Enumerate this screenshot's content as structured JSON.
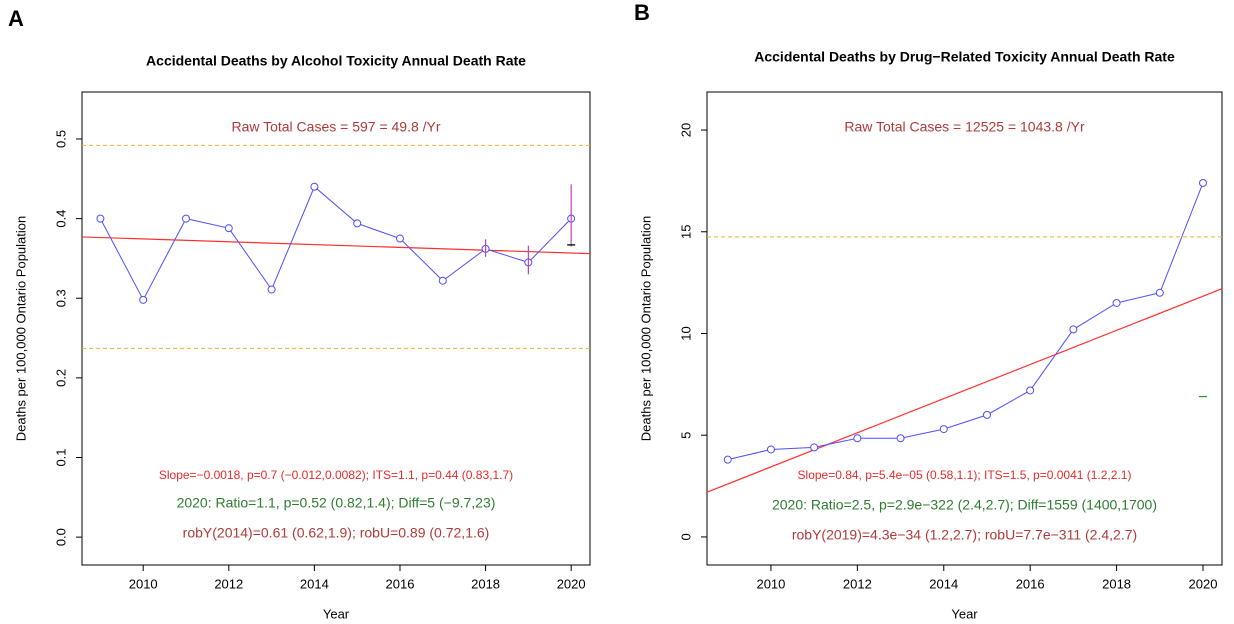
{
  "chart_data": [
    {
      "type": "line",
      "panel_label": "A",
      "title": "Accidental Deaths by Alcohol Toxicity Annual Death Rate",
      "x_label": "Year",
      "y_label": "Deaths per 100,000 Ontario Population",
      "x": [
        2009,
        2010,
        2011,
        2012,
        2013,
        2014,
        2015,
        2016,
        2017,
        2018,
        2019,
        2020
      ],
      "series": [
        {
          "color": "#4f4fff",
          "values": [
            0.4,
            0.298,
            0.4,
            0.388,
            0.311,
            0.44,
            0.394,
            0.375,
            0.322,
            0.362,
            0.345,
            0.4
          ]
        }
      ],
      "xlim": [
        2008.57,
        2020.44
      ],
      "ylim": [
        -0.035,
        0.559
      ],
      "xticks": [
        2010,
        2012,
        2014,
        2016,
        2018,
        2020
      ],
      "yticks": [
        {
          "value": 0,
          "label": "0.0"
        },
        0.1,
        0.2,
        0.3,
        0.4,
        0.5
      ],
      "hlines": [
        {
          "value": 0.492,
          "color": "#f0b030"
        },
        {
          "value": 0.237,
          "color": "#f0b030"
        }
      ],
      "trend": {
        "x": [
          2008.57,
          2020.44
        ],
        "y": [
          0.377,
          0.356
        ],
        "color": "#ff3030"
      },
      "ci_bars": [
        {
          "x": 2018,
          "low": 0.352,
          "high": 0.374,
          "color": "#c040c0"
        },
        {
          "x": 2019,
          "low": 0.33,
          "high": 0.366,
          "color": "#c040c0"
        },
        {
          "x": 2020,
          "low": 0.365,
          "high": 0.443,
          "color": "#c040c0"
        }
      ],
      "markers": [
        {
          "x": 2020,
          "y": 0.367,
          "color": "#000000"
        }
      ],
      "annotations": [
        {
          "text": "Raw Total Cases = 597 = 49.8 /Yr",
          "color": "#b03a3a"
        },
        {
          "text": "Slope=−0.0018, p=0.7 (−0.012,0.0082);  ITS=1.1, p=0.44 (0.83,1.7)",
          "color": "#e82a2a"
        },
        {
          "text": "2020:  Ratio=1.1, p=0.52 (0.82,1.4);  Diff=5 (−9.7,23)",
          "color": "#2e7d2e"
        },
        {
          "text": "robY(2014)=0.61 (0.62,1.9); robU=0.89 (0.72,1.6)",
          "color": "#b03a3a"
        }
      ]
    },
    {
      "type": "line",
      "panel_label": "B",
      "title": "Accidental Deaths by Drug−Related Toxicity Annual Death Rate",
      "x_label": "Year",
      "y_label": "Deaths per 100,000 Ontario Population",
      "x": [
        2009,
        2010,
        2011,
        2012,
        2013,
        2014,
        2015,
        2016,
        2017,
        2018,
        2019,
        2020
      ],
      "series": [
        {
          "color": "#4f4fff",
          "values": [
            3.8,
            4.3,
            4.4,
            4.85,
            4.85,
            5.3,
            6.0,
            7.2,
            10.2,
            11.5,
            12.0,
            17.4
          ]
        }
      ],
      "xlim": [
        2008.52,
        2020.44
      ],
      "ylim": [
        -1.38,
        21.87
      ],
      "xticks": [
        2010,
        2012,
        2014,
        2016,
        2018,
        2020
      ],
      "yticks": [
        0,
        5,
        10,
        15,
        20
      ],
      "hlines": [
        {
          "value": 14.75,
          "color": "#f0b030"
        }
      ],
      "trend": {
        "x": [
          2008.52,
          2020.44
        ],
        "y": [
          2.2,
          12.2
        ],
        "color": "#ff3030"
      },
      "ci_bars": [],
      "markers": [
        {
          "x": 2020,
          "y": 6.9,
          "color": "#2e9d2e"
        }
      ],
      "annotations": [
        {
          "text": "Raw Total Cases = 12525 = 1043.8 /Yr",
          "color": "#b03a3a"
        },
        {
          "text": "Slope=0.84, p=5.4e−05 (0.58,1.1);  ITS=1.5, p=0.0041 (1.2,2.1)",
          "color": "#e82a2a"
        },
        {
          "text": "2020:  Ratio=2.5, p=2.9e−322 (2.4,2.7);  Diff=1559 (1400,1700)",
          "color": "#2e7d2e"
        },
        {
          "text": "robY(2019)=4.3e−34 (1.2,2.7); robU=7.7e−311 (2.4,2.7)",
          "color": "#b03a3a"
        }
      ]
    }
  ]
}
